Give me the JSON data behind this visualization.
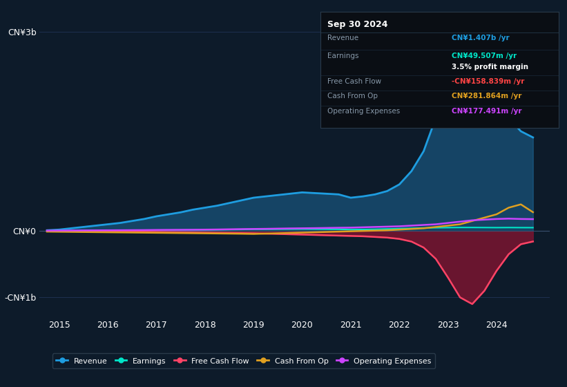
{
  "bg_color": "#0d1b2a",
  "plot_bg_color": "#0d1b2a",
  "title": "Sep 30 2024",
  "tooltip": {
    "revenue": "CN¥1.407b /yr",
    "earnings": "CN¥49.507m /yr",
    "profit_margin": "3.5% profit margin",
    "free_cash_flow": "-CN¥158.839m /yr",
    "cash_from_op": "CN¥281.864m /yr",
    "operating_expenses": "CN¥177.491m /yr"
  },
  "years": [
    2014.75,
    2015.0,
    2015.25,
    2015.5,
    2015.75,
    2016.0,
    2016.25,
    2016.5,
    2016.75,
    2017.0,
    2017.25,
    2017.5,
    2017.75,
    2018.0,
    2018.25,
    2018.5,
    2018.75,
    2019.0,
    2019.25,
    2019.5,
    2019.75,
    2020.0,
    2020.25,
    2020.5,
    2020.75,
    2021.0,
    2021.25,
    2021.5,
    2021.75,
    2022.0,
    2022.25,
    2022.5,
    2022.75,
    2023.0,
    2023.25,
    2023.5,
    2023.75,
    2024.0,
    2024.25,
    2024.5,
    2024.75
  ],
  "revenue": [
    0.01,
    0.02,
    0.04,
    0.06,
    0.08,
    0.1,
    0.12,
    0.15,
    0.18,
    0.22,
    0.25,
    0.28,
    0.32,
    0.35,
    0.38,
    0.42,
    0.46,
    0.5,
    0.52,
    0.54,
    0.56,
    0.58,
    0.57,
    0.56,
    0.55,
    0.5,
    0.52,
    0.55,
    0.6,
    0.7,
    0.9,
    1.2,
    1.7,
    2.5,
    3.0,
    2.8,
    2.5,
    2.0,
    1.7,
    1.5,
    1.407
  ],
  "earnings": [
    0.002,
    0.003,
    0.004,
    0.005,
    0.006,
    0.007,
    0.008,
    0.009,
    0.01,
    0.012,
    0.013,
    0.014,
    0.015,
    0.016,
    0.018,
    0.02,
    0.022,
    0.025,
    0.025,
    0.026,
    0.027,
    0.028,
    0.027,
    0.026,
    0.025,
    0.02,
    0.022,
    0.025,
    0.03,
    0.035,
    0.04,
    0.045,
    0.048,
    0.05,
    0.052,
    0.052,
    0.051,
    0.05,
    0.051,
    0.05,
    0.04951
  ],
  "free_cash_flow": [
    -0.005,
    -0.005,
    -0.005,
    -0.005,
    -0.006,
    -0.007,
    -0.008,
    -0.01,
    -0.012,
    -0.015,
    -0.018,
    -0.02,
    -0.022,
    -0.025,
    -0.028,
    -0.03,
    -0.032,
    -0.035,
    -0.04,
    -0.045,
    -0.05,
    -0.055,
    -0.06,
    -0.065,
    -0.07,
    -0.075,
    -0.08,
    -0.09,
    -0.1,
    -0.12,
    -0.16,
    -0.25,
    -0.42,
    -0.7,
    -1.0,
    -1.1,
    -0.9,
    -0.6,
    -0.35,
    -0.2,
    -0.158839
  ],
  "cash_from_op": [
    -0.01,
    -0.012,
    -0.014,
    -0.016,
    -0.018,
    -0.02,
    -0.022,
    -0.024,
    -0.026,
    -0.028,
    -0.03,
    -0.032,
    -0.034,
    -0.036,
    -0.038,
    -0.04,
    -0.042,
    -0.045,
    -0.04,
    -0.035,
    -0.03,
    -0.025,
    -0.02,
    -0.015,
    -0.01,
    -0.005,
    0.0,
    0.005,
    0.01,
    0.02,
    0.03,
    0.04,
    0.06,
    0.08,
    0.1,
    0.15,
    0.2,
    0.25,
    0.35,
    0.4,
    0.281864
  ],
  "operating_expenses": [
    0.005,
    0.006,
    0.007,
    0.008,
    0.009,
    0.01,
    0.011,
    0.012,
    0.013,
    0.015,
    0.016,
    0.017,
    0.018,
    0.02,
    0.022,
    0.025,
    0.028,
    0.03,
    0.032,
    0.035,
    0.038,
    0.04,
    0.042,
    0.045,
    0.048,
    0.05,
    0.055,
    0.06,
    0.065,
    0.07,
    0.08,
    0.09,
    0.1,
    0.12,
    0.14,
    0.16,
    0.17,
    0.18,
    0.185,
    0.18,
    0.177491
  ],
  "revenue_color": "#1e9de0",
  "revenue_fill": "#1e6ea0",
  "earnings_color": "#00e5c8",
  "free_cash_flow_color": "#ff4466",
  "free_cash_flow_fill": "#7a1530",
  "cash_from_op_color": "#e0a020",
  "operating_expenses_color": "#cc44ff",
  "grid_color": "#1e3050",
  "text_color": "#aabbcc",
  "label_color": "#ffffff",
  "xtick_years": [
    2015,
    2016,
    2017,
    2018,
    2019,
    2020,
    2021,
    2022,
    2023,
    2024
  ],
  "legend_items": [
    "Revenue",
    "Earnings",
    "Free Cash Flow",
    "Cash From Op",
    "Operating Expenses"
  ],
  "legend_colors": [
    "#1e9de0",
    "#00e5c8",
    "#ff4466",
    "#e0a020",
    "#cc44ff"
  ]
}
